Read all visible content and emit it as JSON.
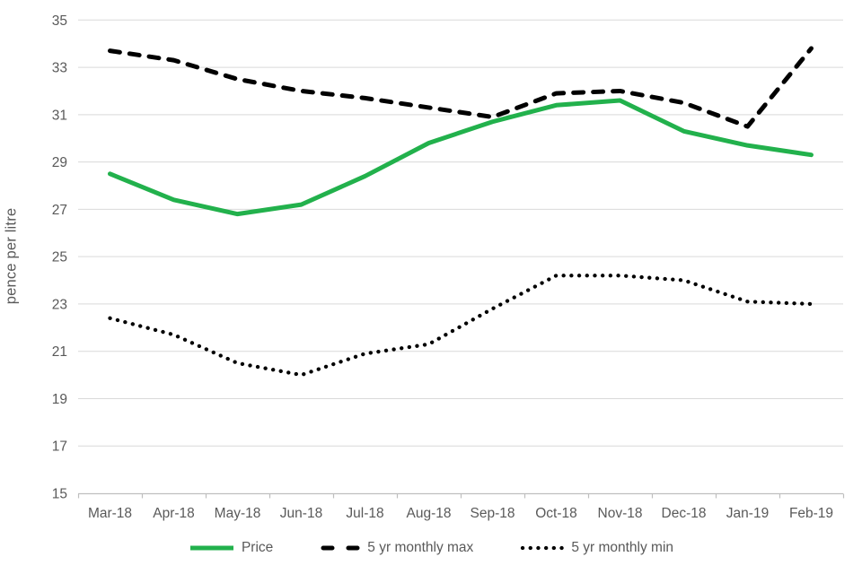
{
  "chart_data": {
    "type": "line",
    "title": "",
    "xlabel": "",
    "ylabel": "pence per litre",
    "ylim": [
      15,
      35
    ],
    "yticks": [
      15,
      17,
      19,
      21,
      23,
      25,
      27,
      29,
      31,
      33,
      35
    ],
    "grid": true,
    "legend_position": "bottom",
    "categories": [
      "Mar-18",
      "Apr-18",
      "May-18",
      "Jun-18",
      "Jul-18",
      "Aug-18",
      "Sep-18",
      "Oct-18",
      "Nov-18",
      "Dec-18",
      "Jan-19",
      "Feb-19"
    ],
    "series": [
      {
        "name": "Price",
        "style": "solid",
        "color": "#22b14c",
        "values": [
          28.5,
          27.4,
          26.8,
          27.2,
          28.4,
          29.8,
          30.7,
          31.4,
          31.6,
          30.3,
          29.7,
          29.3
        ]
      },
      {
        "name": "5 yr monthly max",
        "style": "dashed",
        "color": "#000000",
        "values": [
          33.7,
          33.3,
          32.5,
          32.0,
          31.7,
          31.3,
          30.9,
          31.9,
          32.0,
          31.5,
          30.5,
          33.8
        ]
      },
      {
        "name": "5 yr monthly min",
        "style": "dotted",
        "color": "#000000",
        "values": [
          22.4,
          21.7,
          20.5,
          20.0,
          20.9,
          21.3,
          22.8,
          24.2,
          24.2,
          24.0,
          23.1,
          23.0
        ]
      }
    ]
  },
  "colors": {
    "text": "#595959",
    "gridline": "#d9d9d9",
    "axis": "#bfbfbf"
  }
}
